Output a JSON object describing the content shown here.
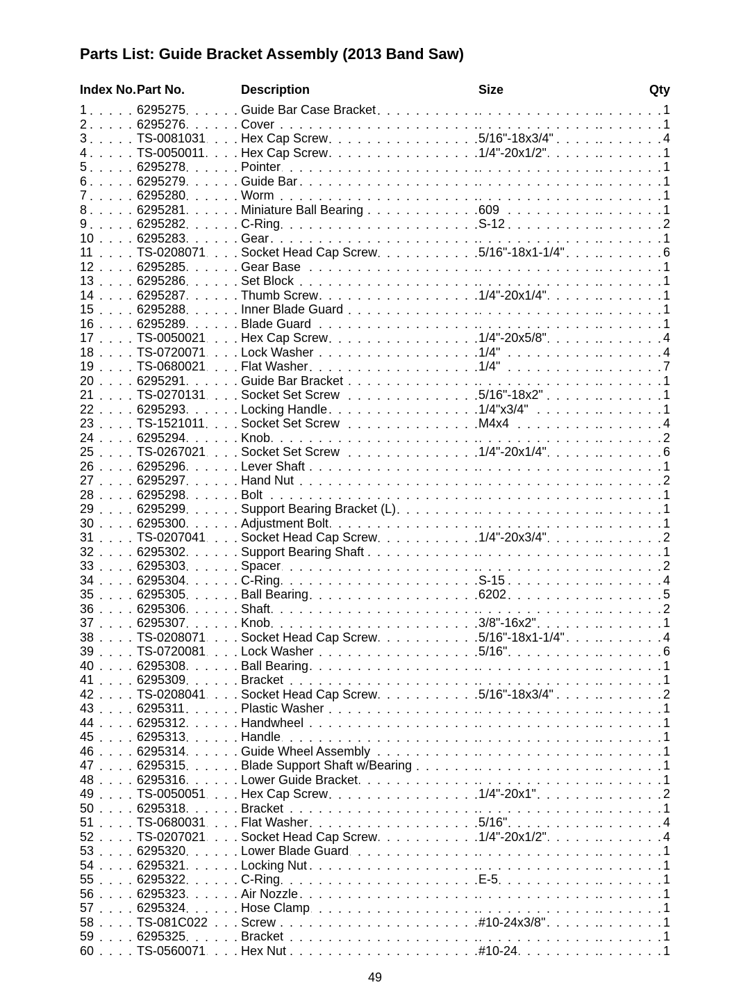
{
  "title": "Parts List: Guide Bracket Assembly (2013 Band Saw)",
  "page_number": "49",
  "headers": {
    "index": "Index No.",
    "part": "Part No.",
    "description": "Description",
    "size": "Size",
    "qty": "Qty"
  },
  "rows": [
    {
      "idx": "1",
      "part": "6295275",
      "desc": "Guide Bar Case Bracket",
      "size": "",
      "qty": "1"
    },
    {
      "idx": "2",
      "part": "6295276",
      "desc": "Cover",
      "size": "",
      "qty": "1"
    },
    {
      "idx": "3",
      "part": "TS-0081031",
      "desc": "Hex Cap Screw",
      "size": "5/16\"-18x3/4\"",
      "qty": "4"
    },
    {
      "idx": "4",
      "part": "TS-0050011",
      "desc": "Hex Cap Screw",
      "size": "1/4\"-20x1/2\"",
      "qty": "1"
    },
    {
      "idx": "5",
      "part": "6295278",
      "desc": "Pointer",
      "size": "",
      "qty": "1"
    },
    {
      "idx": "6",
      "part": "6295279",
      "desc": "Guide Bar",
      "size": "",
      "qty": "1"
    },
    {
      "idx": "7",
      "part": "6295280",
      "desc": "Worm",
      "size": "",
      "qty": "1"
    },
    {
      "idx": "8",
      "part": "6295281",
      "desc": "Miniature Ball Bearing",
      "size": "609",
      "qty": "1"
    },
    {
      "idx": "9",
      "part": "6295282",
      "desc": "C-Ring",
      "size": "S-12",
      "qty": "2"
    },
    {
      "idx": "10",
      "part": "6295283",
      "desc": "Gear",
      "size": "",
      "qty": "1"
    },
    {
      "idx": "11",
      "part": "TS-0208071",
      "desc": "Socket Head Cap Screw",
      "size": "5/16\"-18x1-1/4\"",
      "qty": "6"
    },
    {
      "idx": "12",
      "part": "6295285",
      "desc": "Gear Base",
      "size": "",
      "qty": "1"
    },
    {
      "idx": "13",
      "part": "6295286",
      "desc": "Set Block",
      "size": "",
      "qty": "1"
    },
    {
      "idx": "14",
      "part": "6295287",
      "desc": "Thumb Screw",
      "size": "1/4\"-20x1/4\"",
      "qty": "1"
    },
    {
      "idx": "15",
      "part": "6295288",
      "desc": "Inner Blade Guard",
      "size": "",
      "qty": "1"
    },
    {
      "idx": "16",
      "part": "6295289",
      "desc": "Blade Guard",
      "size": "",
      "qty": "1"
    },
    {
      "idx": "17",
      "part": "TS-0050021",
      "desc": "Hex Cap Screw",
      "size": "1/4\"-20x5/8\"",
      "qty": "4"
    },
    {
      "idx": "18",
      "part": "TS-0720071",
      "desc": "Lock Washer",
      "size": "1/4\"",
      "qty": "4"
    },
    {
      "idx": "19",
      "part": "TS-0680021",
      "desc": "Flat Washer",
      "size": "1/4\"",
      "qty": "7"
    },
    {
      "idx": "20",
      "part": "6295291",
      "desc": "Guide Bar Bracket",
      "size": "",
      "qty": "1"
    },
    {
      "idx": "21",
      "part": "TS-0270131",
      "desc": "Socket Set Screw",
      "size": "5/16\"-18x2\"",
      "qty": "1"
    },
    {
      "idx": "22",
      "part": "6295293",
      "desc": "Locking Handle",
      "size": "1/4\"x3/4\"",
      "qty": "1"
    },
    {
      "idx": "23",
      "part": "TS-1521011",
      "desc": "Socket Set Screw",
      "size": "M4x4",
      "qty": "4"
    },
    {
      "idx": "24",
      "part": "6295294",
      "desc": "Knob",
      "size": "",
      "qty": "2"
    },
    {
      "idx": "25",
      "part": "TS-0267021",
      "desc": "Socket Set Screw",
      "size": "1/4\"-20x1/4\"",
      "qty": "6"
    },
    {
      "idx": "26",
      "part": "6295296",
      "desc": "Lever Shaft",
      "size": "",
      "qty": "1"
    },
    {
      "idx": "27",
      "part": "6295297",
      "desc": "Hand Nut",
      "size": "",
      "qty": "2"
    },
    {
      "idx": "28",
      "part": "6295298",
      "desc": "Bolt",
      "size": "",
      "qty": "1"
    },
    {
      "idx": "29",
      "part": "6295299",
      "desc": "Support Bearing Bracket (L)",
      "size": "",
      "qty": "1"
    },
    {
      "idx": "30",
      "part": "6295300",
      "desc": "Adjustment Bolt",
      "size": "",
      "qty": "1"
    },
    {
      "idx": "31",
      "part": "TS-0207041",
      "desc": "Socket Head Cap Screw",
      "size": "1/4\"-20x3/4\"",
      "qty": "2"
    },
    {
      "idx": "32",
      "part": "6295302",
      "desc": "Support Bearing Shaft",
      "size": "",
      "qty": "1"
    },
    {
      "idx": "33",
      "part": "6295303",
      "desc": "Spacer",
      "size": "",
      "qty": "2"
    },
    {
      "idx": "34",
      "part": "6295304",
      "desc": "C-Ring",
      "size": "S-15",
      "qty": "4"
    },
    {
      "idx": "35",
      "part": "6295305",
      "desc": "Ball Bearing",
      "size": "6202",
      "qty": "5"
    },
    {
      "idx": "36",
      "part": "6295306",
      "desc": "Shaft",
      "size": "",
      "qty": "2"
    },
    {
      "idx": "37",
      "part": "6295307",
      "desc": "Knob",
      "size": "3/8\"-16x2\"",
      "qty": "1"
    },
    {
      "idx": "38",
      "part": "TS-0208071",
      "desc": "Socket Head Cap Screw",
      "size": "5/16\"-18x1-1/4\"",
      "qty": "4"
    },
    {
      "idx": "39",
      "part": "TS-0720081",
      "desc": "Lock Washer",
      "size": "5/16\"",
      "qty": "6"
    },
    {
      "idx": "40",
      "part": "6295308",
      "desc": "Ball Bearing",
      "size": "",
      "qty": "1"
    },
    {
      "idx": "41",
      "part": "6295309",
      "desc": "Bracket",
      "size": "",
      "qty": "1"
    },
    {
      "idx": "42",
      "part": "TS-0208041",
      "desc": "Socket Head Cap Screw",
      "size": "5/16\"-18x3/4\"",
      "qty": "2"
    },
    {
      "idx": "43",
      "part": "6295311",
      "desc": "Plastic Washer",
      "size": "",
      "qty": "1"
    },
    {
      "idx": "44",
      "part": "6295312",
      "desc": "Handwheel",
      "size": "",
      "qty": "1"
    },
    {
      "idx": "45",
      "part": "6295313",
      "desc": "Handle",
      "size": "",
      "qty": "1"
    },
    {
      "idx": "46",
      "part": "6295314",
      "desc": "Guide Wheel Assembly",
      "size": "",
      "qty": "1"
    },
    {
      "idx": "47",
      "part": "6295315",
      "desc": "Blade Support Shaft w/Bearing",
      "size": "",
      "qty": "1"
    },
    {
      "idx": "48",
      "part": "6295316",
      "desc": "Lower Guide Bracket",
      "size": "",
      "qty": "1"
    },
    {
      "idx": "49",
      "part": "TS-0050051",
      "desc": "Hex Cap Screw",
      "size": "1/4\"-20x1\"",
      "qty": "2"
    },
    {
      "idx": "50",
      "part": "6295318",
      "desc": "Bracket",
      "size": "",
      "qty": "1"
    },
    {
      "idx": "51",
      "part": "TS-0680031",
      "desc": "Flat Washer",
      "size": "5/16\"",
      "qty": "4"
    },
    {
      "idx": "52",
      "part": "TS-0207021",
      "desc": "Socket Head Cap Screw",
      "size": "1/4\"-20x1/2\"",
      "qty": "4"
    },
    {
      "idx": "53",
      "part": "6295320",
      "desc": "Lower Blade Guard",
      "size": "",
      "qty": "1"
    },
    {
      "idx": "54",
      "part": "6295321",
      "desc": "Locking Nut",
      "size": "",
      "qty": "1"
    },
    {
      "idx": "55",
      "part": "6295322",
      "desc": "C-Ring",
      "size": "E-5",
      "qty": "1"
    },
    {
      "idx": "56",
      "part": "6295323",
      "desc": "Air Nozzle",
      "size": "",
      "qty": "1"
    },
    {
      "idx": "57",
      "part": "6295324",
      "desc": "Hose Clamp",
      "size": "",
      "qty": "1"
    },
    {
      "idx": "58",
      "part": "TS-081C022",
      "desc": "Screw",
      "size": "#10-24x3/8\"",
      "qty": "1"
    },
    {
      "idx": "59",
      "part": "6295325",
      "desc": "Bracket",
      "size": "",
      "qty": "1"
    },
    {
      "idx": "60",
      "part": "TS-0560071",
      "desc": "Hex Nut",
      "size": "#10-24",
      "qty": "1"
    }
  ]
}
